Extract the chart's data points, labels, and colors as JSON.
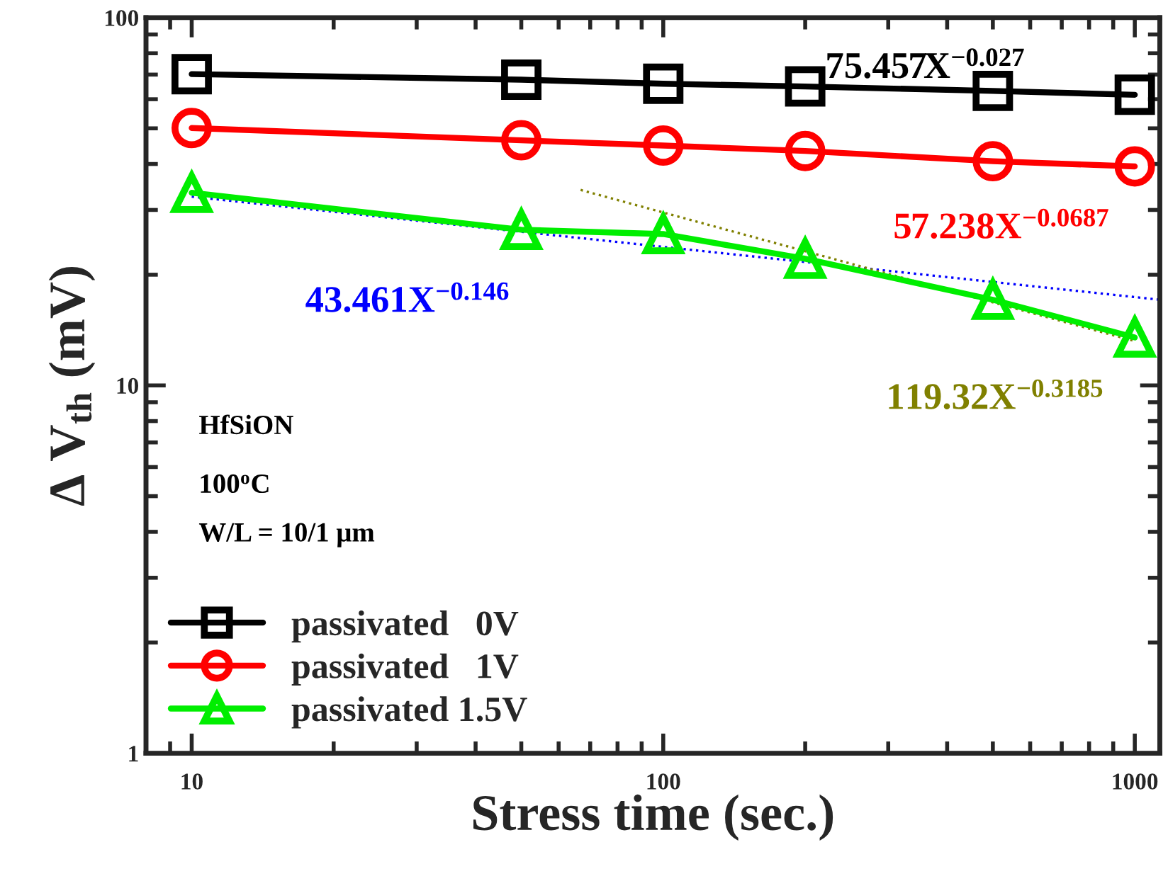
{
  "chart_data": {
    "type": "line",
    "xlabel": "Stress time (sec.)",
    "ylabel": "Δ V$_{th}$ (mV)",
    "log": "xy",
    "xlim": [
      8,
      1130
    ],
    "ylim": [
      1,
      100
    ],
    "xticks": [
      10,
      100,
      1000
    ],
    "yticks": [
      1,
      10,
      100
    ],
    "grid": false,
    "legend": "bottom left",
    "series": [
      {
        "name": "passivated   0V",
        "color": "#000000",
        "marker": "square",
        "line_style": "solid",
        "x": [
          10,
          50,
          100,
          200,
          500,
          1000
        ],
        "values": [
          70.2,
          67.8,
          66.1,
          65.0,
          63.2,
          61.7
        ]
      },
      {
        "name": "passivated   1V",
        "color": "#ff0000",
        "marker": "circle",
        "line_style": "solid",
        "x": [
          10,
          50,
          100,
          200,
          500,
          1000
        ],
        "values": [
          50.1,
          46.4,
          44.9,
          43.4,
          40.7,
          39.4
        ]
      },
      {
        "name": "passivated 1.5V",
        "color": "#00ee00",
        "marker": "triangle",
        "line_style": "solid",
        "x": [
          10,
          50,
          100,
          200,
          500,
          1000
        ],
        "values": [
          33.4,
          26.5,
          25.8,
          22.1,
          17.1,
          13.5
        ]
      },
      {
        "color": "#0000ff",
        "marker": "none",
        "line_style": "dotted",
        "x": [
          10,
          1130
        ],
        "values": [
          32.6,
          17.1
        ]
      },
      {
        "color": "#808000",
        "marker": "none",
        "line_style": "dotted",
        "x": [
          66.8,
          1000
        ],
        "values": [
          34.0,
          13.2
        ]
      }
    ],
    "annotations": [
      "75.457X$^{−0.027}$",
      "57.238X$^{−0.0687}$",
      "43.461X$^{−0.146}$",
      "119.32X$^{−0.3185}$",
      "HfSiON",
      "100$^{o}$C",
      "W/L = 10/1 μm"
    ]
  }
}
